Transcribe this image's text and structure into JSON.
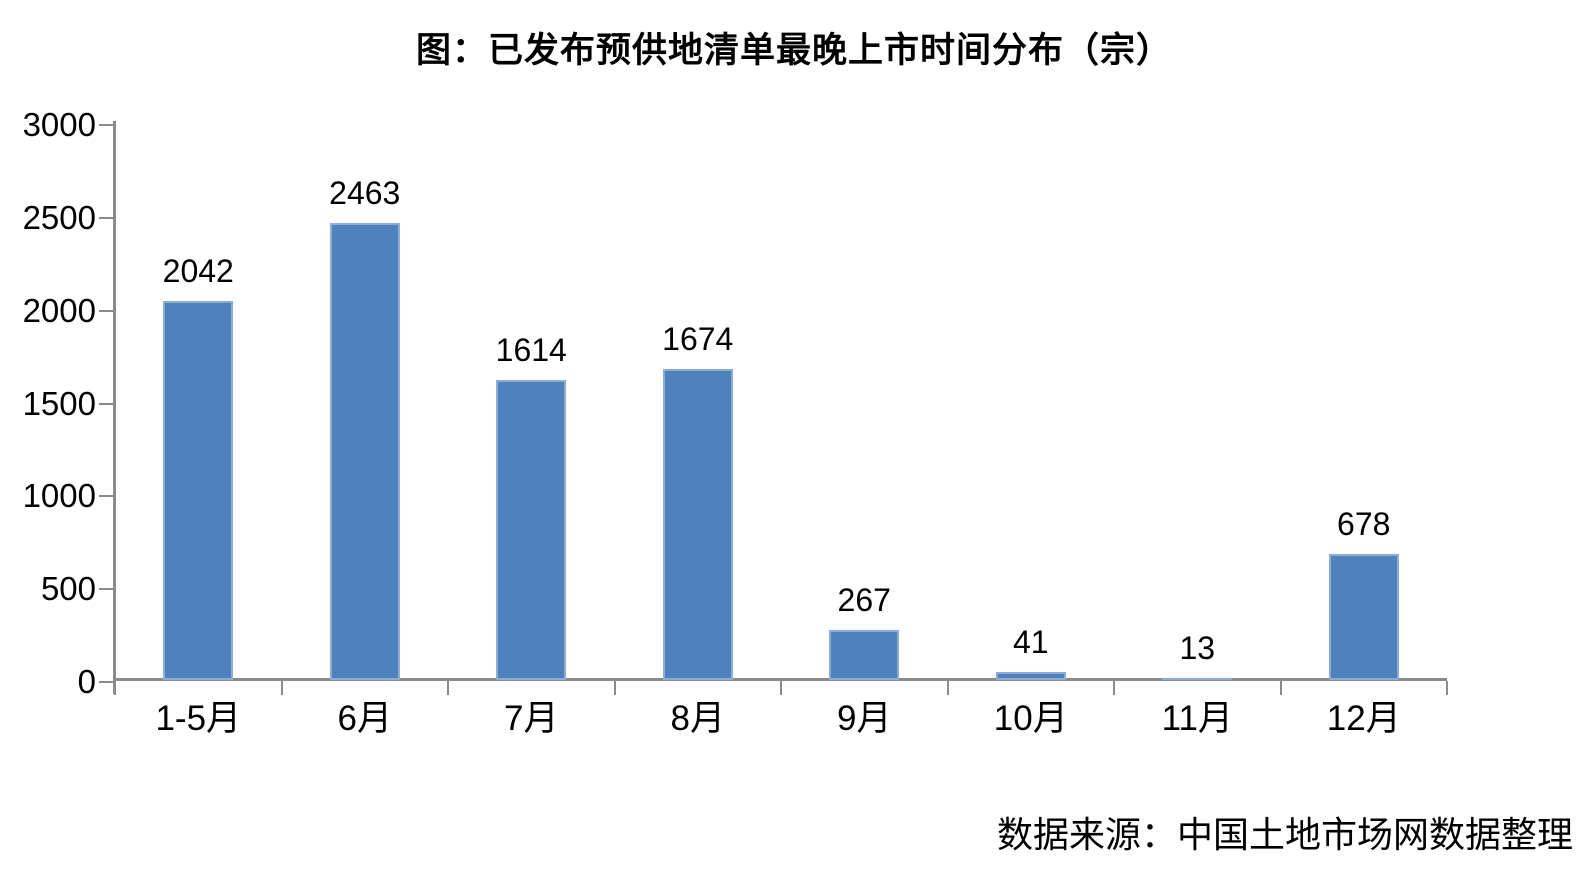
{
  "chart_data": {
    "type": "bar",
    "title": "图：已发布预供地清单最晚上市时间分布（宗）",
    "categories": [
      "1-5月",
      "6月",
      "7月",
      "8月",
      "9月",
      "10月",
      "11月",
      "12月"
    ],
    "values": [
      2042,
      2463,
      1614,
      1674,
      267,
      41,
      13,
      678
    ],
    "xlabel": "",
    "ylabel": "",
    "ylim": [
      0,
      3000
    ],
    "yticks": [
      0,
      500,
      1000,
      1500,
      2000,
      2500,
      3000
    ],
    "grid": false,
    "legend_position": "none",
    "data_labels": true,
    "bar_color": "#4F81BD",
    "bar_edge_color": "#AEC6E2",
    "axis_color": "#8B8B8B",
    "text_color": "#000000"
  },
  "source_note": "数据来源：中国土地市场网数据整理"
}
